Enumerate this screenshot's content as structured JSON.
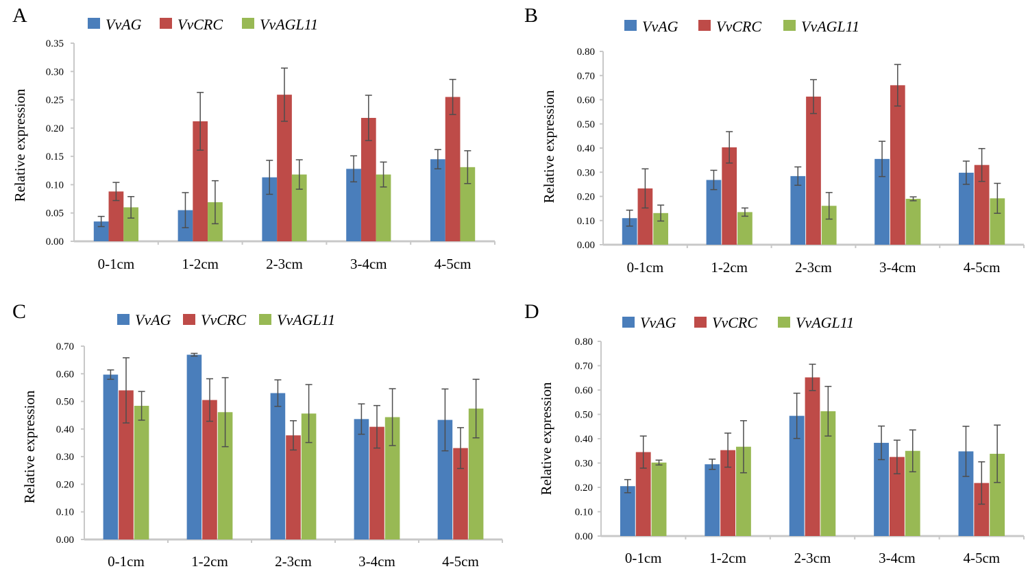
{
  "colors": {
    "VvAG": "#4a7ebb",
    "VvCRC": "#be4b48",
    "VvAGL11": "#98b954",
    "axis": "#c8c8c8",
    "error": "#4d4d4d"
  },
  "chart_data": [
    {
      "type": "bar",
      "panel": "A",
      "ylabel": "Relative expression",
      "ylim": [
        0,
        0.35
      ],
      "yticks": [
        "0.00",
        "0.05",
        "0.10",
        "0.15",
        "0.20",
        "0.25",
        "0.30",
        "0.35"
      ],
      "categories": [
        "0-1cm",
        "1-2cm",
        "2-3cm",
        "3-4cm",
        "4-5cm"
      ],
      "legend": [
        "VvAG",
        "VvCRC",
        "VvAGL11"
      ],
      "series": [
        {
          "name": "VvAG",
          "values": [
            0.035,
            0.055,
            0.113,
            0.128,
            0.145
          ],
          "errors": [
            0.009,
            0.031,
            0.03,
            0.023,
            0.017
          ]
        },
        {
          "name": "VvCRC",
          "values": [
            0.088,
            0.212,
            0.259,
            0.218,
            0.255
          ],
          "errors": [
            0.016,
            0.051,
            0.047,
            0.04,
            0.031
          ]
        },
        {
          "name": "VvAGL11",
          "values": [
            0.06,
            0.069,
            0.118,
            0.118,
            0.131
          ],
          "errors": [
            0.019,
            0.038,
            0.026,
            0.022,
            0.029
          ]
        }
      ]
    },
    {
      "type": "bar",
      "panel": "B",
      "ylabel": "Relative expression",
      "ylim": [
        0,
        0.8
      ],
      "yticks": [
        "0.00",
        "0.10",
        "0.20",
        "0.30",
        "0.40",
        "0.50",
        "0.60",
        "0.70",
        "0.80"
      ],
      "categories": [
        "0-1cm",
        "1-2cm",
        "2-3cm",
        "3-4cm",
        "4-5cm"
      ],
      "legend": [
        "VvAG",
        "VvCRC",
        "VvAGL11"
      ],
      "series": [
        {
          "name": "VvAG",
          "values": [
            0.11,
            0.268,
            0.284,
            0.355,
            0.298
          ],
          "errors": [
            0.033,
            0.04,
            0.038,
            0.073,
            0.048
          ]
        },
        {
          "name": "VvCRC",
          "values": [
            0.233,
            0.403,
            0.613,
            0.66,
            0.33
          ],
          "errors": [
            0.081,
            0.065,
            0.07,
            0.086,
            0.068
          ]
        },
        {
          "name": "VvAGL11",
          "values": [
            0.131,
            0.135,
            0.161,
            0.19,
            0.192
          ],
          "errors": [
            0.033,
            0.017,
            0.055,
            0.008,
            0.062
          ]
        }
      ]
    },
    {
      "type": "bar",
      "panel": "C",
      "ylabel": "Relative expression",
      "ylim": [
        0,
        0.7
      ],
      "yticks": [
        "0.00",
        "0.10",
        "0.20",
        "0.30",
        "0.40",
        "0.50",
        "0.60",
        "0.70"
      ],
      "categories": [
        "0-1cm",
        "1-2cm",
        "2-3cm",
        "3-4cm",
        "4-5cm"
      ],
      "legend": [
        "VvAG",
        "VvCRC",
        "VvAGL11"
      ],
      "series": [
        {
          "name": "VvAG",
          "values": [
            0.597,
            0.669,
            0.53,
            0.436,
            0.433
          ],
          "errors": [
            0.017,
            0.005,
            0.048,
            0.055,
            0.112
          ]
        },
        {
          "name": "VvCRC",
          "values": [
            0.54,
            0.505,
            0.377,
            0.408,
            0.331
          ],
          "errors": [
            0.118,
            0.077,
            0.053,
            0.077,
            0.074
          ]
        },
        {
          "name": "VvAGL11",
          "values": [
            0.484,
            0.461,
            0.456,
            0.443,
            0.474
          ],
          "errors": [
            0.052,
            0.125,
            0.105,
            0.103,
            0.106
          ]
        }
      ]
    },
    {
      "type": "bar",
      "panel": "D",
      "ylabel": "Relative expression",
      "ylim": [
        0,
        0.8
      ],
      "yticks": [
        "0.00",
        "0.10",
        "0.20",
        "0.30",
        "0.40",
        "0.50",
        "0.60",
        "0.70",
        "0.80"
      ],
      "categories": [
        "0-1cm",
        "1-2cm",
        "2-3cm",
        "3-4cm",
        "4-5cm"
      ],
      "legend": [
        "VvAG",
        "VvCRC",
        "VvAGL11"
      ],
      "series": [
        {
          "name": "VvAG",
          "values": [
            0.205,
            0.295,
            0.494,
            0.383,
            0.348
          ],
          "errors": [
            0.027,
            0.021,
            0.093,
            0.069,
            0.103
          ]
        },
        {
          "name": "VvCRC",
          "values": [
            0.345,
            0.353,
            0.652,
            0.325,
            0.218
          ],
          "errors": [
            0.066,
            0.07,
            0.054,
            0.069,
            0.087
          ]
        },
        {
          "name": "VvAGL11",
          "values": [
            0.302,
            0.367,
            0.513,
            0.35,
            0.338
          ],
          "errors": [
            0.01,
            0.107,
            0.102,
            0.086,
            0.118
          ]
        }
      ]
    }
  ]
}
